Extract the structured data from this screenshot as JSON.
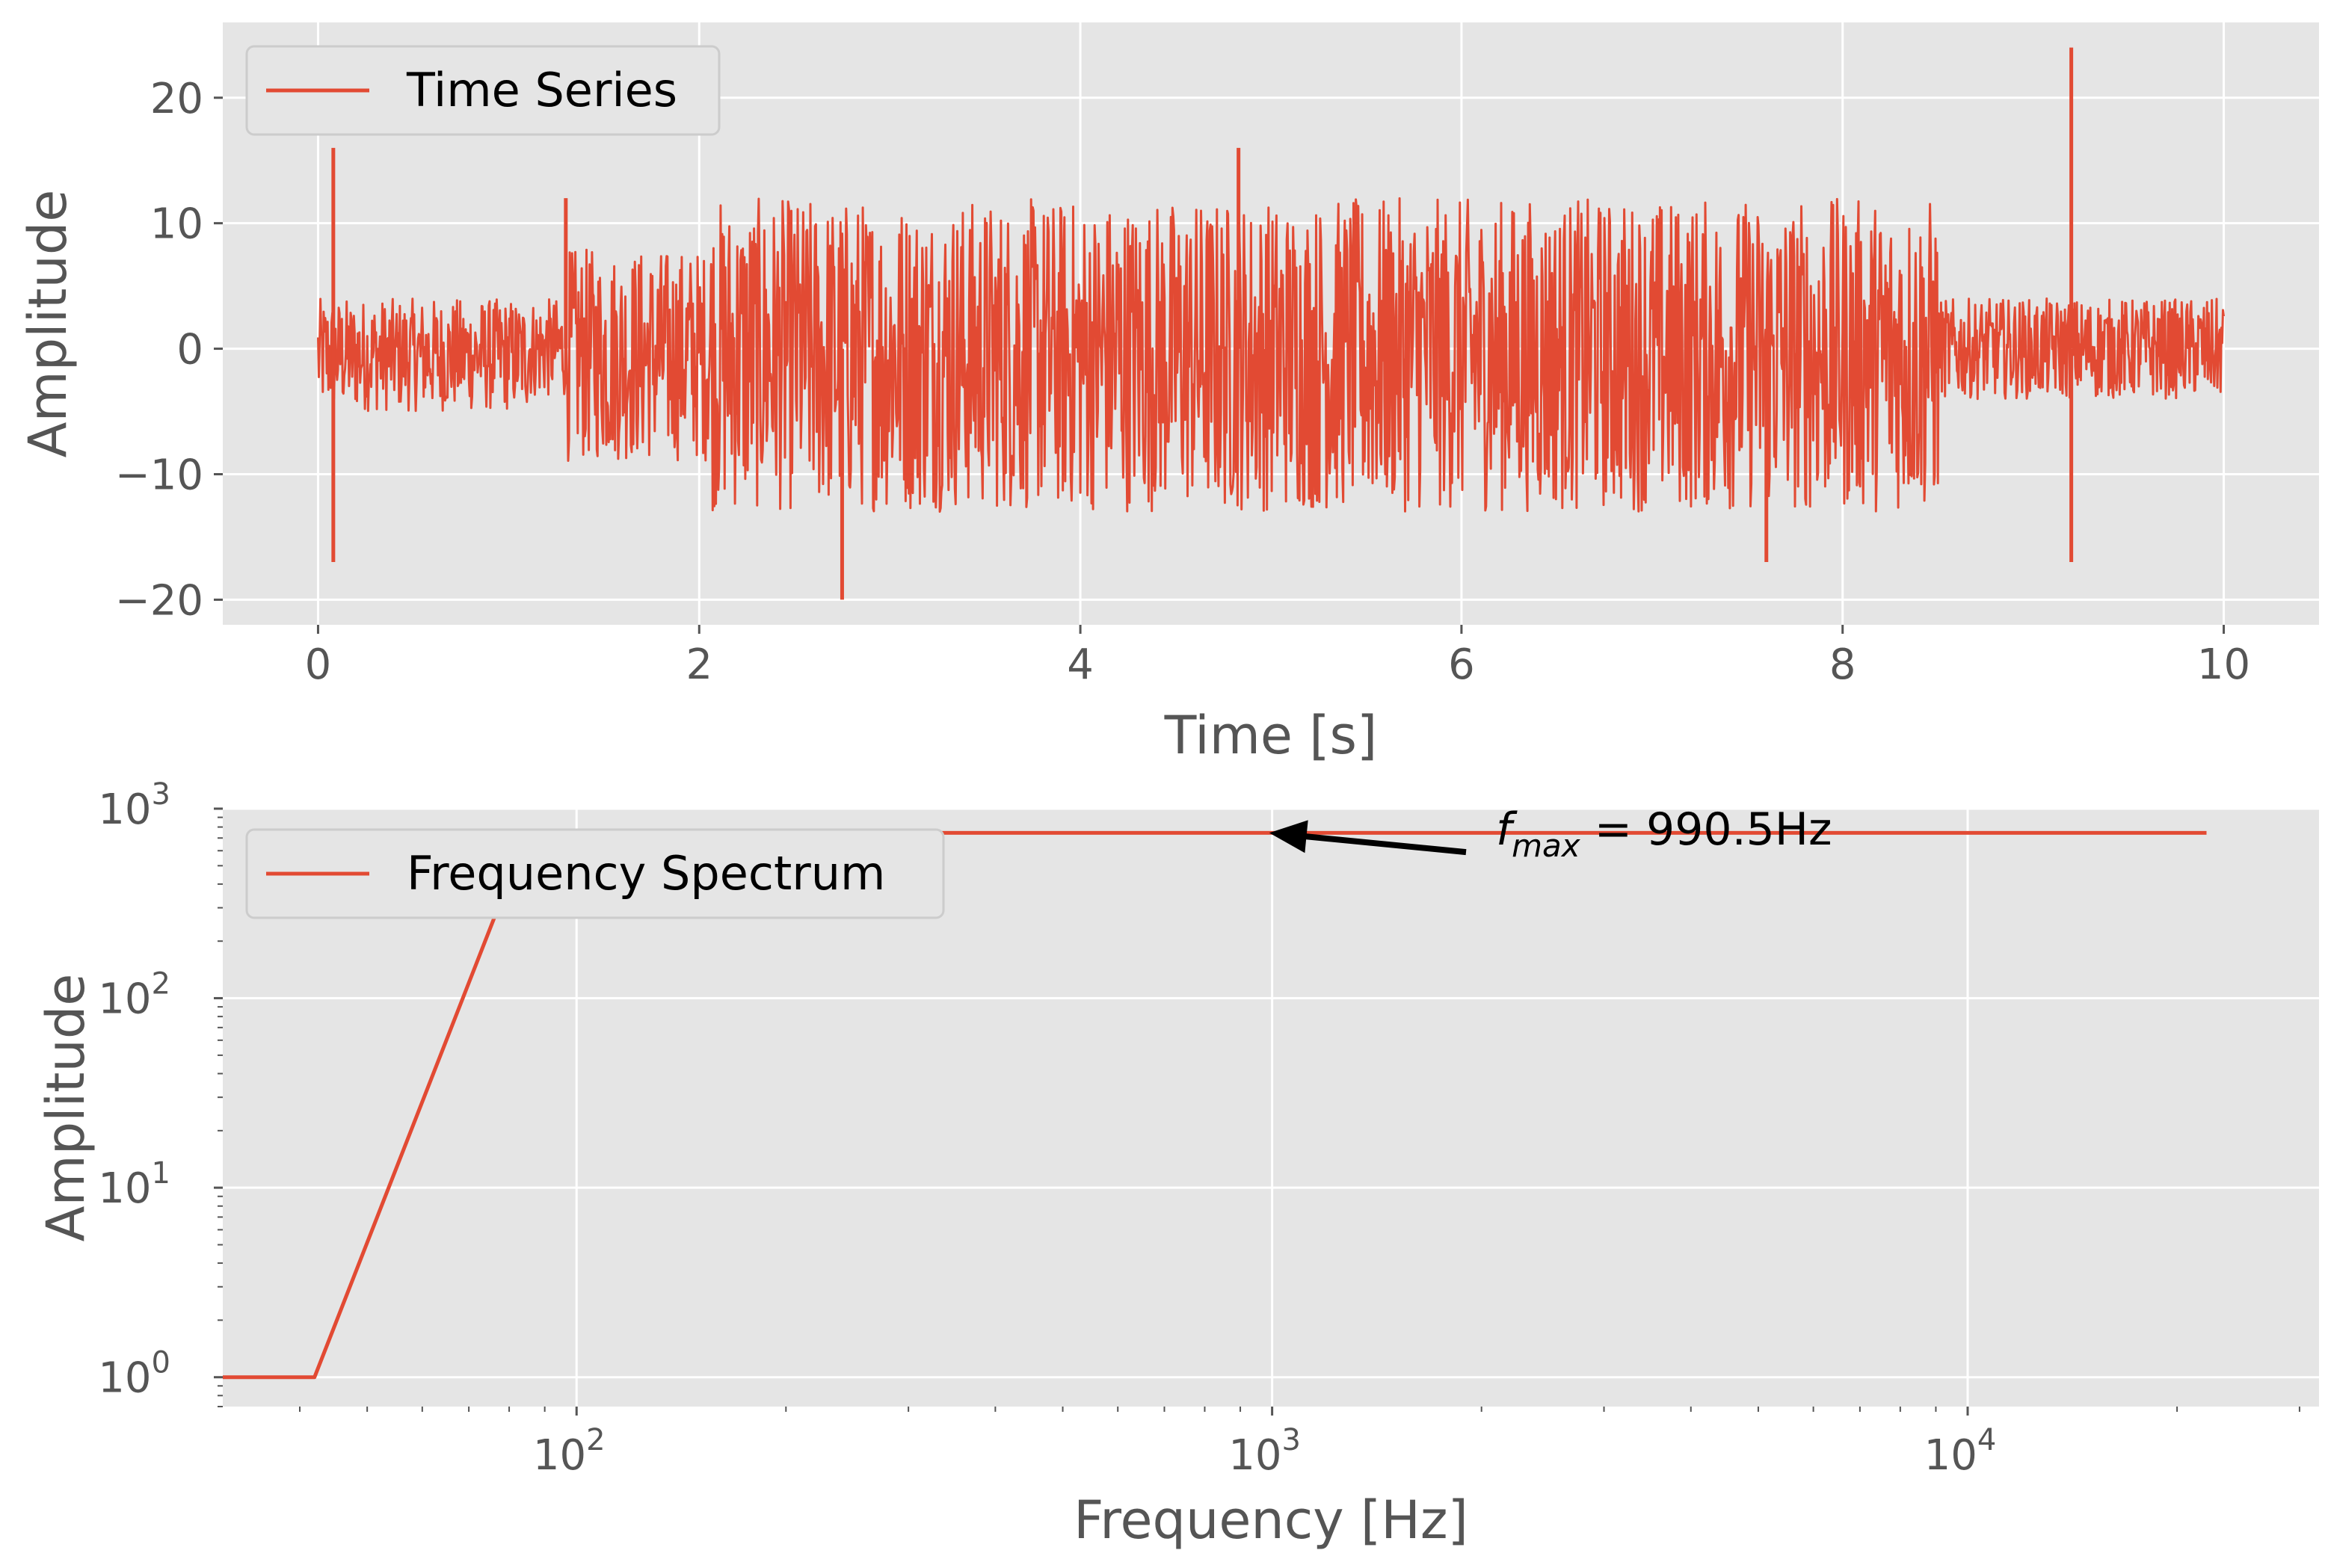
{
  "colors": {
    "background": "#ffffff",
    "axes_face": "#e5e5e5",
    "grid": "#ffffff",
    "series": "#e24a33",
    "tick_text": "#555555",
    "legend_face": "#e5e5e5",
    "legend_edge": "#cccccc",
    "annotation": "#000000"
  },
  "chart_data": [
    {
      "type": "line",
      "title": "",
      "xlabel": "Time [s]",
      "ylabel": "Amplitude",
      "xlim": [
        -0.5,
        10.5
      ],
      "ylim": [
        -22,
        26
      ],
      "grid": true,
      "legend": {
        "placement": "upper-left",
        "entries": [
          "Time Series"
        ]
      },
      "x_ticks": [
        0,
        2,
        4,
        6,
        8,
        10
      ],
      "x_tick_labels": [
        "0",
        "2",
        "4",
        "6",
        "8",
        "10"
      ],
      "y_ticks": [
        -20,
        -10,
        0,
        10,
        20
      ],
      "y_tick_labels": [
        "−20",
        "−10",
        "0",
        "10",
        "20"
      ],
      "series": [
        {
          "name": "Time Series",
          "x_range": [
            0,
            10
          ],
          "description_of_envelope": "piecewise amplitude bands",
          "envelope": [
            {
              "t0": 0.0,
              "t1": 1.1,
              "low": -5,
              "high": 4
            },
            {
              "t0": 1.1,
              "t1": 1.3,
              "low": -4,
              "high": 4
            },
            {
              "t0": 1.3,
              "t1": 2.05,
              "low": -9,
              "high": 8
            },
            {
              "t0": 2.05,
              "t1": 8.5,
              "low": -13,
              "high": 12
            },
            {
              "t0": 8.5,
              "t1": 10.0,
              "low": -4,
              "high": 4
            }
          ],
          "spikes": [
            {
              "t": 0.08,
              "y": 16
            },
            {
              "t": 0.08,
              "y": -17
            },
            {
              "t": 2.75,
              "y": -20
            },
            {
              "t": 9.2,
              "y": 24
            },
            {
              "t": 9.2,
              "y": -17
            },
            {
              "t": 4.83,
              "y": 16
            },
            {
              "t": 7.6,
              "y": -17
            },
            {
              "t": 1.3,
              "y": 12
            }
          ]
        }
      ]
    },
    {
      "type": "line",
      "title": "",
      "xlabel": "Frequency [Hz]",
      "ylabel": "Amplitude",
      "x_scale": "log",
      "y_scale": "log",
      "xlim": [
        31,
        32000
      ],
      "ylim": [
        0.7,
        1000
      ],
      "grid": true,
      "legend": {
        "placement": "upper-left",
        "entries": [
          "Frequency Spectrum"
        ]
      },
      "x_ticks": [
        100,
        1000,
        10000
      ],
      "x_tick_labels": [
        {
          "base": "10",
          "exp": "2"
        },
        {
          "base": "10",
          "exp": "3"
        },
        {
          "base": "10",
          "exp": "4"
        }
      ],
      "y_ticks": [
        1,
        10,
        100,
        1000
      ],
      "y_tick_labels": [
        {
          "base": "10",
          "exp": "0"
        },
        {
          "base": "10",
          "exp": "1"
        },
        {
          "base": "10",
          "exp": "2"
        },
        {
          "base": "10",
          "exp": "3"
        }
      ],
      "series": [
        {
          "name": "Frequency Spectrum",
          "x": [
            31,
            42,
            85,
            22050
          ],
          "y": [
            1,
            1,
            745,
            745
          ]
        }
      ],
      "annotation": {
        "text_prefix": "f",
        "text_subscript": "max",
        "text_suffix": " = 990.5Hz",
        "xy": [
          990.5,
          745
        ],
        "xytext": [
          1900,
          590
        ]
      }
    }
  ]
}
